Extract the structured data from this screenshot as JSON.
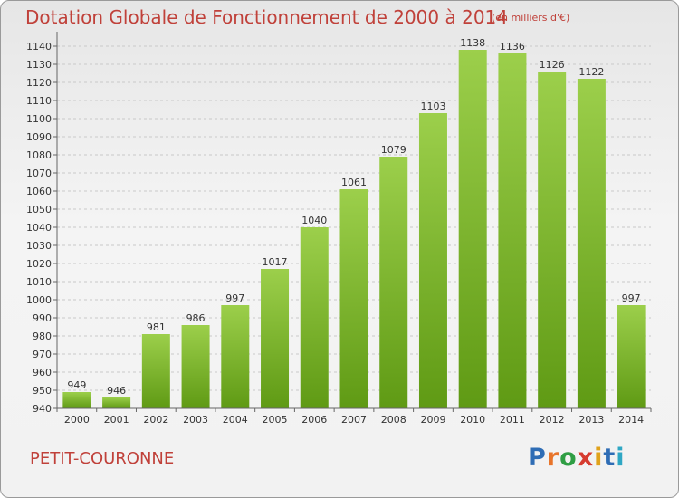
{
  "header": {
    "title": "Dotation Globale de Fonctionnement de 2000 à 2014",
    "unit_note": "(en milliers d'€)"
  },
  "footer": {
    "commune": "PETIT-COURONNE",
    "logo_text": "Proxiti"
  },
  "colors": {
    "title": "#c0413a",
    "bar_top": "#9ccf4b",
    "bar_bottom": "#5f9a14",
    "grid": "#c9c9c9"
  },
  "chart_data": {
    "type": "bar",
    "categories": [
      "2000",
      "2001",
      "2002",
      "2003",
      "2004",
      "2005",
      "2006",
      "2007",
      "2008",
      "2009",
      "2010",
      "2011",
      "2012",
      "2013",
      "2014"
    ],
    "values": [
      949,
      946,
      981,
      986,
      997,
      1017,
      1040,
      1061,
      1079,
      1103,
      1138,
      1136,
      1126,
      1122,
      997
    ],
    "title": "Dotation Globale de Fonctionnement de 2000 à 2014",
    "subtitle": "(en milliers d'€)",
    "xlabel": "",
    "ylabel": "",
    "ylim": [
      940,
      1145
    ],
    "yticks": [
      940,
      950,
      960,
      970,
      980,
      990,
      1000,
      1010,
      1020,
      1030,
      1040,
      1050,
      1060,
      1070,
      1080,
      1090,
      1100,
      1110,
      1120,
      1130,
      1140
    ],
    "grid": true,
    "legend": "none",
    "data_labels": true
  }
}
